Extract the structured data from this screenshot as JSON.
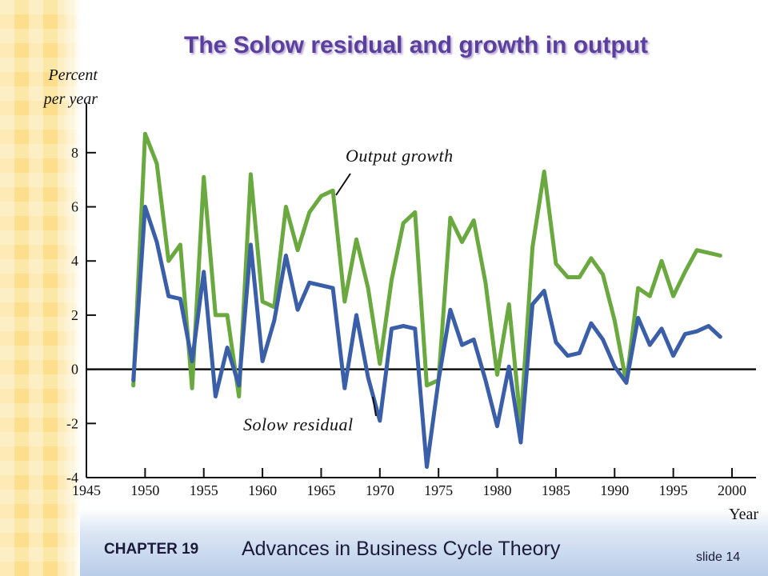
{
  "slide": {
    "title": "The Solow residual and growth in output",
    "chapter_label": "CHAPTER 19",
    "chapter_title": "Advances in Business Cycle Theory",
    "slide_number": "slide 14"
  },
  "colors": {
    "title": "#5a3f9c",
    "output_growth": "#6aa840",
    "solow_residual": "#3a5fa8",
    "axis": "#111111"
  },
  "chart_data": {
    "type": "line",
    "title": "",
    "ylabel_line1": "Percent",
    "ylabel_line2": "per year",
    "xlabel": "Year",
    "xlim": [
      1945,
      2000
    ],
    "ylim": [
      -4,
      9
    ],
    "x_ticks": [
      1945,
      1950,
      1955,
      1960,
      1965,
      1970,
      1975,
      1980,
      1985,
      1990,
      1995,
      2000
    ],
    "y_ticks": [
      -4,
      -2,
      0,
      2,
      4,
      6,
      8
    ],
    "grid": false,
    "legend": "inline labels",
    "series": [
      {
        "name": "Output growth",
        "color": "#6aa840",
        "x": [
          1949,
          1950,
          1951,
          1952,
          1953,
          1954,
          1955,
          1956,
          1957,
          1958,
          1959,
          1960,
          1961,
          1962,
          1963,
          1964,
          1965,
          1966,
          1967,
          1968,
          1969,
          1970,
          1971,
          1972,
          1973,
          1974,
          1975,
          1976,
          1977,
          1978,
          1979,
          1980,
          1981,
          1982,
          1983,
          1984,
          1985,
          1986,
          1987,
          1988,
          1989,
          1990,
          1991,
          1992,
          1993,
          1994,
          1995,
          1996,
          1997,
          1998,
          1999
        ],
        "values": [
          -0.6,
          8.7,
          7.6,
          4.0,
          4.6,
          -0.7,
          7.1,
          2.0,
          2.0,
          -1.0,
          7.2,
          2.5,
          2.3,
          6.0,
          4.4,
          5.8,
          6.4,
          6.6,
          2.5,
          4.8,
          3.0,
          0.2,
          3.3,
          5.4,
          5.8,
          -0.6,
          -0.4,
          5.6,
          4.7,
          5.5,
          3.2,
          -0.2,
          2.4,
          -2.0,
          4.5,
          7.3,
          3.9,
          3.4,
          3.4,
          4.1,
          3.5,
          1.8,
          -0.5,
          3.0,
          2.7,
          4.0,
          2.7,
          3.6,
          4.4,
          4.3,
          4.2
        ]
      },
      {
        "name": "Solow residual",
        "color": "#3a5fa8",
        "x": [
          1949,
          1950,
          1951,
          1952,
          1953,
          1954,
          1955,
          1956,
          1957,
          1958,
          1959,
          1960,
          1961,
          1962,
          1963,
          1964,
          1965,
          1966,
          1967,
          1968,
          1969,
          1970,
          1971,
          1972,
          1973,
          1974,
          1975,
          1976,
          1977,
          1978,
          1979,
          1980,
          1981,
          1982,
          1983,
          1984,
          1985,
          1986,
          1987,
          1988,
          1989,
          1990,
          1991,
          1992,
          1993,
          1994,
          1995,
          1996,
          1997,
          1998,
          1999
        ],
        "values": [
          -0.4,
          6.0,
          4.7,
          2.7,
          2.6,
          0.3,
          3.6,
          -1.0,
          0.8,
          -0.6,
          4.6,
          0.3,
          1.8,
          4.2,
          2.2,
          3.2,
          3.1,
          3.0,
          -0.7,
          2.0,
          -0.3,
          -1.9,
          1.5,
          1.6,
          1.5,
          -3.6,
          -0.4,
          2.2,
          0.9,
          1.1,
          -0.4,
          -2.1,
          0.1,
          -2.7,
          2.4,
          2.9,
          1.0,
          0.5,
          0.6,
          1.7,
          1.1,
          0.1,
          -0.5,
          1.9,
          0.9,
          1.5,
          0.5,
          1.3,
          1.4,
          1.6,
          1.2
        ]
      }
    ]
  }
}
